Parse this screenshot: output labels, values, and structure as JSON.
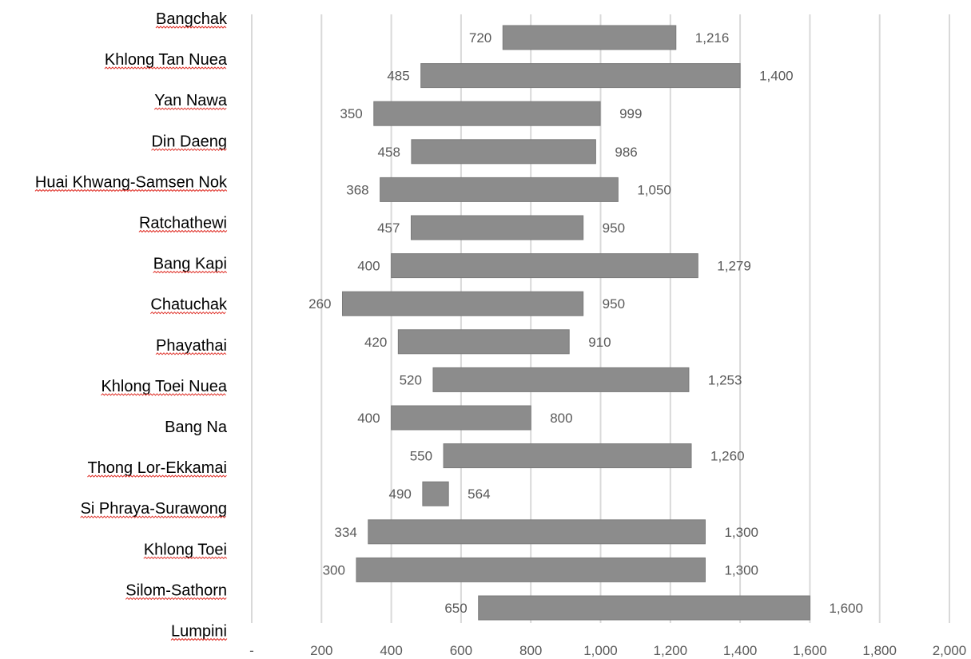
{
  "chart_data": {
    "type": "bar",
    "orientation": "horizontal-floating",
    "categories": [
      "Bangchak",
      "Khlong Tan Nuea",
      "Yan Nawa",
      "Din Daeng",
      "Huai Khwang-Samsen Nok",
      "Ratchathewi",
      "Bang Kapi",
      "Chatuchak",
      "Phayathai",
      "Khlong Toei Nuea",
      "Bang Na",
      "Thong Lor-Ekkamai",
      "Si Phraya-Surawong",
      "Khlong Toei",
      "Silom-Sathorn",
      "Lumpini"
    ],
    "ranges": [
      {
        "low": 720,
        "high": 1216,
        "low_label": "720",
        "high_label": "1,216"
      },
      {
        "low": 485,
        "high": 1400,
        "low_label": "485",
        "high_label": "1,400"
      },
      {
        "low": 350,
        "high": 999,
        "low_label": "350",
        "high_label": "999"
      },
      {
        "low": 458,
        "high": 986,
        "low_label": "458",
        "high_label": "986"
      },
      {
        "low": 368,
        "high": 1050,
        "low_label": "368",
        "high_label": "1,050"
      },
      {
        "low": 457,
        "high": 950,
        "low_label": "457",
        "high_label": "950"
      },
      {
        "low": 400,
        "high": 1279,
        "low_label": "400",
        "high_label": "1,279"
      },
      {
        "low": 260,
        "high": 950,
        "low_label": "260",
        "high_label": "950"
      },
      {
        "low": 420,
        "high": 910,
        "low_label": "420",
        "high_label": "910"
      },
      {
        "low": 520,
        "high": 1253,
        "low_label": "520",
        "high_label": "1,253"
      },
      {
        "low": 400,
        "high": 800,
        "low_label": "400",
        "high_label": "800"
      },
      {
        "low": 550,
        "high": 1260,
        "low_label": "550",
        "high_label": "1,260"
      },
      {
        "low": 490,
        "high": 564,
        "low_label": "490",
        "high_label": "564"
      },
      {
        "low": 334,
        "high": 1300,
        "low_label": "334",
        "high_label": "1,300"
      },
      {
        "low": 300,
        "high": 1300,
        "low_label": "300",
        "high_label": "1,300"
      },
      {
        "low": 650,
        "high": 1600,
        "low_label": "650",
        "high_label": "1,600"
      }
    ],
    "xlim": [
      0,
      2000
    ],
    "x_ticks": [
      0,
      200,
      400,
      600,
      800,
      1000,
      1200,
      1400,
      1600,
      1800,
      2000
    ],
    "x_tick_labels": [
      "-",
      "200",
      "400",
      "600",
      "800",
      "1,000",
      "1,200",
      "1,400",
      "1,600",
      "1,800",
      "2,000"
    ],
    "grid": true,
    "colors": {
      "bar": "#8c8c8c",
      "grid": "#d9d9d9",
      "text": "#595959",
      "spellcheck": "#e0342c"
    },
    "spellcheck_underlined": [
      "Bangchak",
      "Khlong Tan Nuea",
      "Yan Nawa",
      "Din Daeng",
      "Huai Khwang-Samsen Nok",
      "Ratchathewi",
      "Bang Kapi",
      "Chatuchak",
      "Phayathai",
      "Khlong Toei Nuea",
      "Thong Lor-Ekkamai",
      "Si Phraya-Surawong",
      "Khlong Toei",
      "Silom-Sathorn",
      "Lumpini"
    ]
  }
}
